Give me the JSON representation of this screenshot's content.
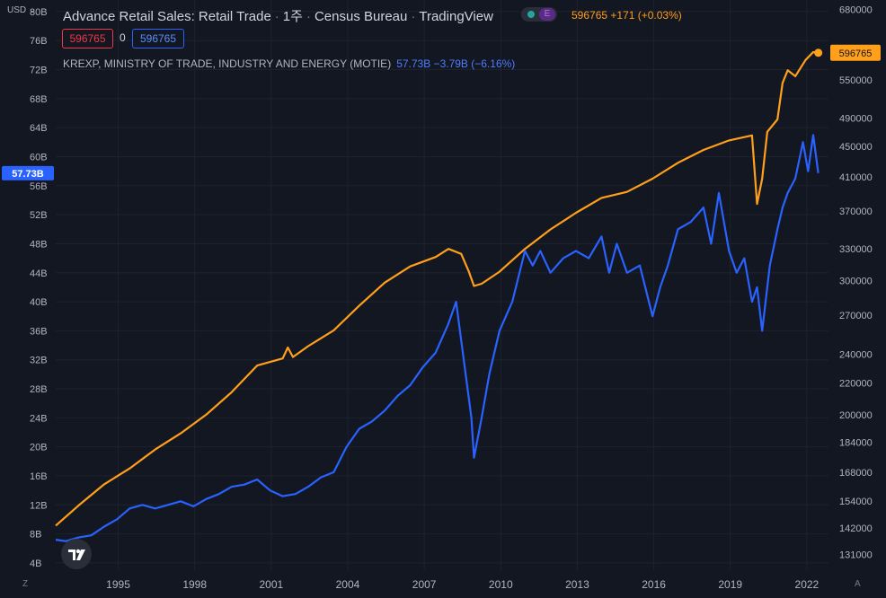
{
  "header": {
    "title_parts": [
      "Advance Retail Sales: Retail Trade",
      "1주",
      "Census Bureau",
      "TradingView"
    ],
    "last_value_text": "596765 +171 (+0.03%)",
    "box_red": "596765",
    "zero_text": "0",
    "box_blue": "596765",
    "compare_name": "KREXP, MINISTRY OF TRADE, INDUSTRY AND ENERGY (MOTIE)",
    "compare_value": "57.73B −3.79B (−6.16%)",
    "currency": "USD",
    "corner_left": "Z",
    "corner_right": "A",
    "pill_letter": "E"
  },
  "colors": {
    "background": "#131722",
    "orange": "#ff9f1a",
    "blue": "#2962ff",
    "grid": "#1e222d",
    "text": "#b2b5be"
  },
  "chart_data": {
    "type": "line",
    "x_ticks": [
      1995,
      1998,
      2001,
      2004,
      2007,
      2010,
      2013,
      2016,
      2019,
      2022
    ],
    "x_range": [
      1992.6,
      2022.9
    ],
    "series": [
      {
        "name": "Advance Retail Sales: Retail Trade",
        "axis": "right",
        "color": "#ff9f1a",
        "x": [
          1992.6,
          1993.5,
          1994.5,
          1995.5,
          1996.5,
          1997.5,
          1998.5,
          1999.5,
          2000.5,
          2001.5,
          2001.7,
          2001.9,
          2002.5,
          2003.5,
          2004.5,
          2005.5,
          2006.5,
          2007.5,
          2008.0,
          2008.5,
          2008.8,
          2009.0,
          2009.3,
          2010.0,
          2011.0,
          2012.0,
          2013.0,
          2014.0,
          2015.0,
          2016.0,
          2017.0,
          2018.0,
          2019.0,
          2019.9,
          2020.1,
          2020.3,
          2020.5,
          2020.9,
          2021.1,
          2021.3,
          2021.6,
          2022.0,
          2022.3,
          2022.5
        ],
        "y": [
          143000,
          152000,
          162000,
          170000,
          180000,
          189000,
          200000,
          214000,
          232000,
          237000,
          245000,
          238000,
          246000,
          258000,
          278000,
          298000,
          313000,
          322000,
          330000,
          325000,
          308000,
          295000,
          297000,
          308000,
          330000,
          350000,
          368000,
          385000,
          392000,
          408000,
          428000,
          445000,
          458000,
          465000,
          378000,
          408000,
          470000,
          488000,
          545000,
          566000,
          556000,
          584000,
          598000,
          596765
        ]
      },
      {
        "name": "KREXP",
        "axis": "left",
        "color": "#2962ff",
        "x": [
          1992.6,
          1993.0,
          1993.5,
          1994.0,
          1994.5,
          1995.0,
          1995.5,
          1996.0,
          1996.5,
          1997.0,
          1997.5,
          1998.0,
          1998.5,
          1999.0,
          1999.5,
          2000.0,
          2000.5,
          2001.0,
          2001.5,
          2002.0,
          2002.5,
          2003.0,
          2003.5,
          2004.0,
          2004.5,
          2005.0,
          2005.5,
          2006.0,
          2006.5,
          2007.0,
          2007.5,
          2008.0,
          2008.3,
          2008.6,
          2008.9,
          2009.0,
          2009.3,
          2009.6,
          2010.0,
          2010.5,
          2011.0,
          2011.3,
          2011.6,
          2012.0,
          2012.5,
          2013.0,
          2013.5,
          2014.0,
          2014.3,
          2014.6,
          2015.0,
          2015.5,
          2016.0,
          2016.3,
          2016.6,
          2017.0,
          2017.5,
          2018.0,
          2018.3,
          2018.6,
          2019.0,
          2019.3,
          2019.6,
          2019.9,
          2020.1,
          2020.3,
          2020.6,
          2020.9,
          2021.1,
          2021.3,
          2021.6,
          2021.9,
          2022.1,
          2022.3,
          2022.5
        ],
        "y": [
          7.2,
          7.0,
          7.5,
          7.8,
          9.0,
          10.0,
          11.5,
          12.0,
          11.5,
          12.0,
          12.5,
          11.8,
          12.8,
          13.5,
          14.5,
          14.8,
          15.5,
          14.0,
          13.2,
          13.5,
          14.5,
          15.8,
          16.5,
          20.0,
          22.5,
          23.5,
          25.0,
          27.0,
          28.5,
          31.0,
          33.0,
          37.0,
          40.0,
          32.0,
          24.0,
          18.5,
          24.0,
          30.0,
          36.0,
          40.0,
          47.0,
          45.0,
          47.0,
          44.0,
          46.0,
          47.0,
          46.0,
          49.0,
          44.0,
          48.0,
          44.0,
          45.0,
          38.0,
          42.0,
          45.0,
          50.0,
          51.0,
          53.0,
          48.0,
          55.0,
          47.0,
          44.0,
          46.0,
          40.0,
          42.0,
          36.0,
          45.0,
          50.0,
          53.0,
          55.0,
          57.0,
          62.0,
          58.0,
          63.0,
          57.73
        ]
      }
    ],
    "left_axis": {
      "ticks": [
        4,
        8,
        12,
        16,
        20,
        24,
        28,
        32,
        36,
        40,
        44,
        48,
        52,
        56,
        60,
        64,
        68,
        72,
        76,
        80
      ],
      "suffix": "B",
      "range": [
        3,
        81.6
      ],
      "scale": "linear"
    },
    "right_axis": {
      "ticks": [
        131000,
        142000,
        154000,
        168000,
        184000,
        200000,
        220000,
        240000,
        270000,
        300000,
        330000,
        370000,
        410000,
        450000,
        490000,
        550000,
        680000
      ],
      "range": [
        125000,
        700000
      ],
      "scale": "log"
    },
    "last_labels": {
      "right": "596765",
      "left": "57.73B"
    },
    "grid": true
  }
}
